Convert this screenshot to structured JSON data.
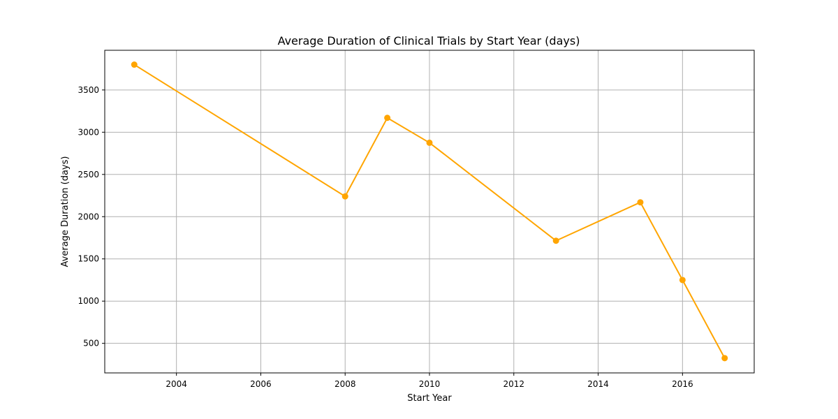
{
  "chart_data": {
    "type": "line",
    "title": "Average Duration of Clinical Trials by Start Year (days)",
    "xlabel": "Start Year",
    "ylabel": "Average Duration (days)",
    "xlim": [
      2002.3,
      2017.7
    ],
    "ylim": [
      150,
      3970
    ],
    "xticks": [
      2004,
      2006,
      2008,
      2010,
      2012,
      2014,
      2016
    ],
    "yticks": [
      500,
      1000,
      1500,
      2000,
      2500,
      3000,
      3500
    ],
    "grid": true,
    "series": [
      {
        "color": "#ffa500",
        "marker": "circle",
        "x": [
          2003,
          2008,
          2009,
          2010,
          2013,
          2015,
          2016,
          2017
        ],
        "y": [
          3800,
          2240,
          3170,
          2875,
          1715,
          2170,
          1250,
          325
        ]
      }
    ]
  }
}
